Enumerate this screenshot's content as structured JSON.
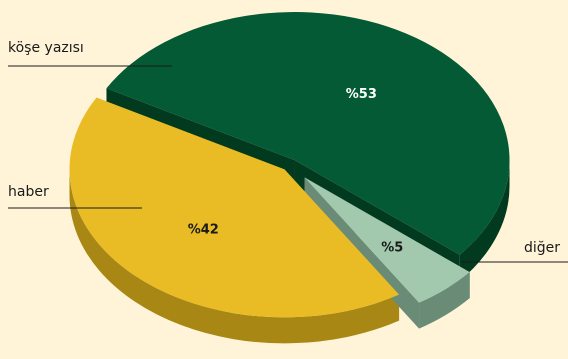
{
  "chart_data": {
    "type": "pie",
    "style": "3d-exploded",
    "slices": [
      {
        "label": "köşe yazısı",
        "value": 53,
        "value_label": "%53",
        "color": "#035A34",
        "side_color": "#013A1F",
        "text_color": "#FFFFFF"
      },
      {
        "label": "diğer",
        "value": 5,
        "value_label": "%5",
        "color": "#A2C8AE",
        "side_color": "#6A8B75",
        "text_color": "#1a1a1a"
      },
      {
        "label": "haber",
        "value": 42,
        "value_label": "%42",
        "color": "#E9BC25",
        "side_color": "#A88714",
        "text_color": "#1a1a1a"
      }
    ]
  }
}
